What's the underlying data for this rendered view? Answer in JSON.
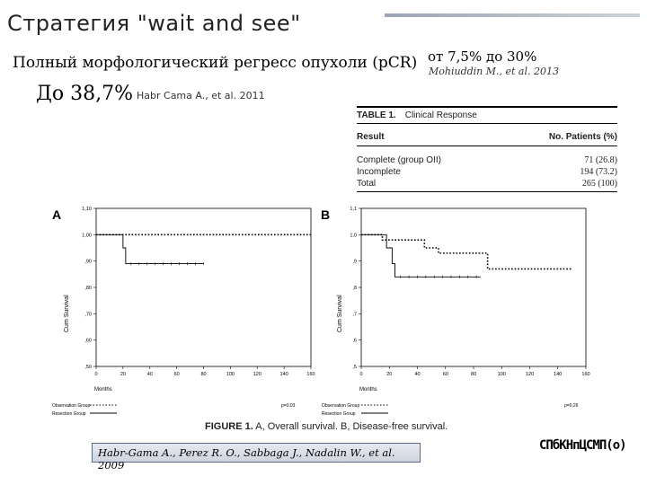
{
  "slide": {
    "title": "Стратегия \"wait and see\"",
    "subtitle": "Полный морфологический регресс опухоли (pCR)",
    "right_note": "от 7,5% до 30%",
    "right_cite": "Mohiuddin M., et al. 2013",
    "big_value": "До 38,7%",
    "big_cite": "Habr Cama A., et al. 2011",
    "bottom_cite": "Habr-Gama A., Perez R. O., Sabbaga J., Nadalin W., et al. 2009",
    "logo": "СПбКНпЦСМП(о)"
  },
  "table": {
    "label": "TABLE 1.",
    "title": "Clinical Response",
    "col_result": "Result",
    "col_patients": "No. Patients (%)",
    "rows": [
      {
        "result": "Complete (group OII)",
        "value": "71 (26.8)"
      },
      {
        "result": "Incomplete",
        "value": "194 (73.2)"
      },
      {
        "result": "Total",
        "value": "265 (100)"
      }
    ]
  },
  "figure": {
    "caption_label": "FIGURE 1.",
    "caption_text": "A, Overall survival. B, Disease-free survival.",
    "panel_a": "A",
    "panel_b": "B",
    "ylabel": "Cum Survival",
    "xlabel": "Months",
    "legend_obs": "Observation Group",
    "legend_res": "Resection Group",
    "p_a": "p=0.03",
    "p_b": "p=0.26"
  },
  "chart_data": [
    {
      "type": "line",
      "title": "",
      "xlabel": "Months",
      "ylabel": "Cum Survival",
      "xlim": [
        0,
        160
      ],
      "ylim": [
        0.5,
        1.1
      ],
      "xticks": [
        "0",
        "20",
        "40",
        "60",
        "80",
        "100",
        "120",
        "140",
        "160"
      ],
      "yticks": [
        "1,10",
        "1,00",
        ",90",
        ",80",
        ",70",
        ",60",
        ",50"
      ],
      "series": [
        {
          "name": "Observation Group",
          "style": "dotted",
          "x": [
            0,
            160
          ],
          "y": [
            1.0,
            1.0
          ]
        },
        {
          "name": "Resection Group",
          "style": "solid",
          "x": [
            0,
            20,
            20,
            22,
            22,
            80
          ],
          "y": [
            1.0,
            1.0,
            0.95,
            0.95,
            0.89,
            0.89
          ]
        }
      ]
    },
    {
      "type": "line",
      "title": "",
      "xlabel": "Months",
      "ylabel": "Cum Survival",
      "xlim": [
        0,
        160
      ],
      "ylim": [
        0.5,
        1.1
      ],
      "xticks": [
        "0",
        "20",
        "40",
        "60",
        "80",
        "100",
        "120",
        "140",
        "160"
      ],
      "yticks": [
        "1,1",
        "1,0",
        ",9",
        ",8",
        ",7",
        ",6",
        ",5"
      ],
      "series": [
        {
          "name": "Observation Group",
          "style": "dotted",
          "x": [
            0,
            15,
            15,
            45,
            45,
            55,
            55,
            90,
            90,
            150
          ],
          "y": [
            1.0,
            1.0,
            0.98,
            0.98,
            0.95,
            0.95,
            0.93,
            0.93,
            0.87,
            0.87
          ]
        },
        {
          "name": "Resection Group",
          "style": "solid",
          "x": [
            0,
            18,
            18,
            22,
            22,
            24,
            24,
            85
          ],
          "y": [
            1.0,
            1.0,
            0.95,
            0.95,
            0.89,
            0.89,
            0.84,
            0.84
          ]
        }
      ]
    }
  ]
}
